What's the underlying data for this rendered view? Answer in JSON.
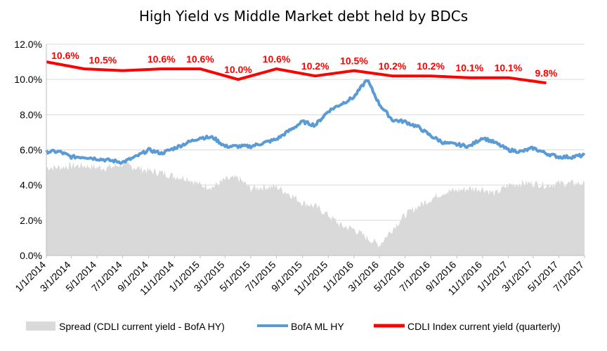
{
  "chart_data": {
    "type": "line",
    "title": "High Yield  vs  Middle Market debt held by BDCs",
    "xlabel": "",
    "ylabel": "",
    "ylim": [
      0.0,
      12.0
    ],
    "yticks": [
      "0.0%",
      "2.0%",
      "4.0%",
      "6.0%",
      "8.0%",
      "10.0%",
      "12.0%"
    ],
    "x_range": [
      "1/1/2014",
      "7/1/2017"
    ],
    "xticks": [
      "1/1/2014",
      "3/1/2014",
      "5/1/2014",
      "7/1/2014",
      "9/1/2014",
      "11/1/2014",
      "1/1/2015",
      "3/1/2015",
      "5/1/2015",
      "7/1/2015",
      "9/1/2015",
      "11/1/2015",
      "1/1/2016",
      "3/1/2016",
      "5/1/2016",
      "7/1/2016",
      "9/1/2016",
      "11/1/2016",
      "1/1/2017",
      "3/1/2017",
      "5/1/2017",
      "7/1/2017"
    ],
    "grid": true,
    "legend_position": "bottom",
    "series": [
      {
        "name": "Spread (CDLI current yield - BofA HY)",
        "type": "area",
        "color": "#d9d9d9",
        "x": [
          "1/1/2014",
          "2/1/2014",
          "3/1/2014",
          "4/1/2014",
          "5/1/2014",
          "6/1/2014",
          "7/1/2014",
          "8/1/2014",
          "9/1/2014",
          "10/1/2014",
          "11/1/2014",
          "12/1/2014",
          "1/1/2015",
          "2/1/2015",
          "3/1/2015",
          "4/1/2015",
          "5/1/2015",
          "6/1/2015",
          "7/1/2015",
          "8/1/2015",
          "9/1/2015",
          "10/1/2015",
          "11/1/2015",
          "12/1/2015",
          "1/1/2016",
          "2/1/2016",
          "3/1/2016",
          "4/1/2016",
          "5/1/2016",
          "6/1/2016",
          "7/1/2016",
          "8/1/2016",
          "9/1/2016",
          "10/1/2016",
          "11/1/2016",
          "12/1/2016",
          "1/1/2017",
          "2/1/2017",
          "3/1/2017",
          "4/1/2017",
          "5/1/2017",
          "6/1/2017",
          "7/1/2017"
        ],
        "values": [
          5.0,
          5.0,
          5.1,
          5.1,
          5.0,
          5.0,
          5.2,
          5.0,
          4.8,
          4.7,
          4.5,
          4.4,
          4.0,
          3.9,
          4.3,
          4.4,
          3.8,
          3.9,
          3.9,
          3.5,
          3.0,
          2.8,
          2.3,
          1.7,
          1.5,
          1.0,
          0.6,
          1.5,
          2.3,
          2.8,
          3.2,
          3.6,
          3.7,
          3.8,
          3.8,
          3.5,
          4.0,
          4.1,
          4.1,
          4.0,
          4.1,
          4.1,
          4.1
        ]
      },
      {
        "name": "BofA ML HY",
        "type": "line",
        "color": "#5b9bd5",
        "x": [
          "1/1/2014",
          "2/1/2014",
          "3/1/2014",
          "4/1/2014",
          "5/1/2014",
          "6/1/2014",
          "7/1/2014",
          "8/1/2014",
          "9/1/2014",
          "10/1/2014",
          "11/1/2014",
          "12/1/2014",
          "1/1/2015",
          "2/1/2015",
          "3/1/2015",
          "4/1/2015",
          "5/1/2015",
          "6/1/2015",
          "7/1/2015",
          "8/1/2015",
          "9/1/2015",
          "10/1/2015",
          "11/1/2015",
          "12/1/2015",
          "1/1/2016",
          "2/1/2016",
          "3/1/2016",
          "4/1/2016",
          "5/1/2016",
          "6/1/2016",
          "7/1/2016",
          "8/1/2016",
          "9/1/2016",
          "10/1/2016",
          "11/1/2016",
          "12/1/2016",
          "1/1/2017",
          "2/1/2017",
          "3/1/2017",
          "4/1/2017",
          "5/1/2017",
          "6/1/2017",
          "7/1/2017"
        ],
        "values": [
          5.9,
          5.9,
          5.6,
          5.6,
          5.5,
          5.4,
          5.3,
          5.6,
          6.0,
          5.8,
          6.1,
          6.4,
          6.7,
          6.7,
          6.2,
          6.2,
          6.2,
          6.4,
          6.6,
          7.1,
          7.6,
          7.4,
          8.2,
          8.6,
          9.0,
          10.0,
          8.6,
          7.7,
          7.6,
          7.3,
          6.8,
          6.4,
          6.3,
          6.2,
          6.7,
          6.4,
          6.0,
          5.9,
          6.1,
          5.8,
          5.6,
          5.6,
          5.7
        ]
      },
      {
        "name": "CDLI Index current yield (quarterly)",
        "type": "line",
        "color": "#ff0000",
        "x": [
          "1/1/2014",
          "4/1/2014",
          "7/1/2014",
          "10/1/2014",
          "1/1/2015",
          "4/1/2015",
          "7/1/2015",
          "10/1/2015",
          "1/1/2016",
          "4/1/2016",
          "7/1/2016",
          "10/1/2016",
          "1/1/2017",
          "4/1/2017"
        ],
        "values": [
          11.0,
          10.6,
          10.5,
          10.6,
          10.6,
          10.0,
          10.6,
          10.2,
          10.5,
          10.2,
          10.2,
          10.1,
          10.1,
          9.8
        ],
        "data_labels": [
          {
            "x": "2/15/2014",
            "text": "10.6%"
          },
          {
            "x": "5/15/2014",
            "text": "10.5%"
          },
          {
            "x": "10/1/2014",
            "text": "10.6%"
          },
          {
            "x": "1/1/2015",
            "text": "10.6%"
          },
          {
            "x": "4/1/2015",
            "text": "10.0%"
          },
          {
            "x": "7/1/2015",
            "text": "10.6%"
          },
          {
            "x": "10/1/2015",
            "text": "10.2%"
          },
          {
            "x": "1/1/2016",
            "text": "10.5%"
          },
          {
            "x": "4/1/2016",
            "text": "10.2%"
          },
          {
            "x": "7/1/2016",
            "text": "10.2%"
          },
          {
            "x": "10/1/2016",
            "text": "10.1%"
          },
          {
            "x": "1/1/2017",
            "text": "10.1%"
          },
          {
            "x": "4/1/2017",
            "text": "9.8%"
          }
        ]
      }
    ]
  }
}
